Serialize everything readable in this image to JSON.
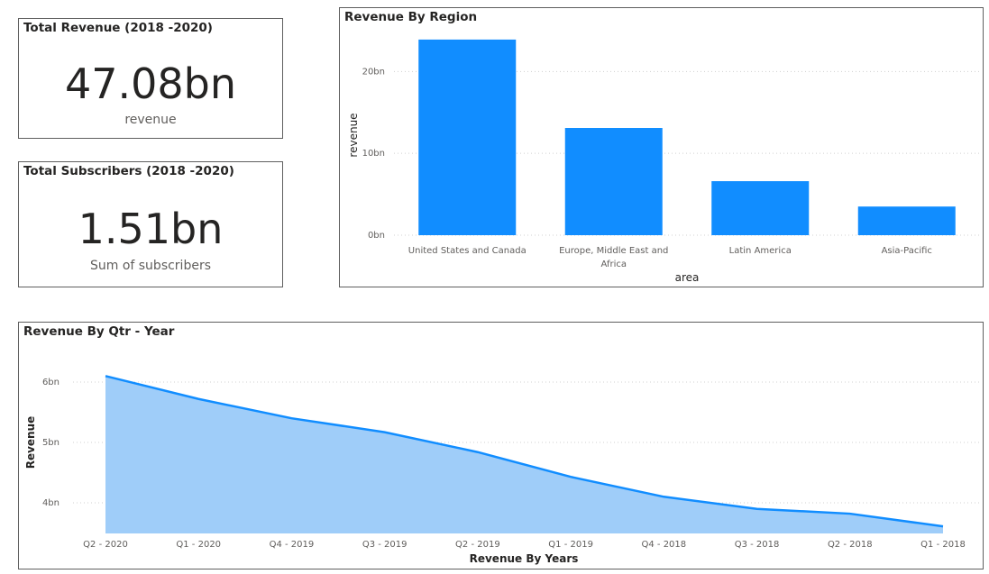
{
  "kpis": {
    "revenue": {
      "title": "Total Revenue (2018 -2020)",
      "value": "47.08bn",
      "label": "revenue"
    },
    "subscribers": {
      "title": "Total Subscribers (2018 -2020)",
      "value": "1.51bn",
      "label": "Sum of subscribers"
    }
  },
  "colors": {
    "bar": "#118dff",
    "area_fill": "#9fcdf9",
    "area_line": "#118dff"
  },
  "chart_data": [
    {
      "type": "bar",
      "title": "Revenue By Region",
      "xlabel": "area",
      "ylabel": "revenue",
      "categories": [
        "United States and Canada",
        "Europe, Middle East and Africa",
        "Latin America",
        "Asia-Pacific"
      ],
      "category_lines": [
        [
          "United States and Canada"
        ],
        [
          "Europe, Middle East and",
          "Africa"
        ],
        [
          "Latin America"
        ],
        [
          "Asia-Pacific"
        ]
      ],
      "values": [
        23.9,
        13.1,
        6.6,
        3.5
      ],
      "ylim": [
        0,
        24
      ],
      "yticks": [
        0,
        10,
        20
      ],
      "ytick_labels": [
        "0bn",
        "10bn",
        "20bn"
      ],
      "grid": true
    },
    {
      "type": "area",
      "title": "Revenue By Qtr - Year",
      "xlabel": "Revenue By Years",
      "ylabel": "Revenue",
      "categories": [
        "Q2 - 2020",
        "Q1 - 2020",
        "Q4 - 2019",
        "Q3 - 2019",
        "Q2 - 2019",
        "Q1 - 2019",
        "Q4 - 2018",
        "Q3 - 2018",
        "Q2 - 2018",
        "Q1 - 2018"
      ],
      "values": [
        6.1,
        5.72,
        5.4,
        5.17,
        4.84,
        4.43,
        4.1,
        3.9,
        3.82,
        3.61
      ],
      "ylim": [
        3.5,
        6.1
      ],
      "yticks": [
        4,
        5,
        6
      ],
      "ytick_labels": [
        "4bn",
        "5bn",
        "6bn"
      ],
      "grid": true
    }
  ]
}
